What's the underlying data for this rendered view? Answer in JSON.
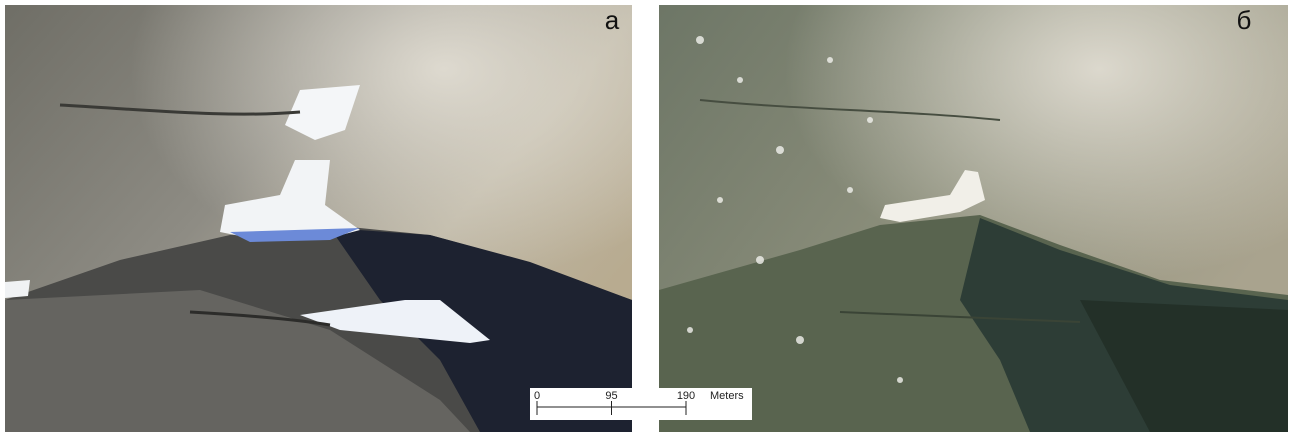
{
  "panels": [
    {
      "label": "а"
    },
    {
      "label": "б"
    }
  ],
  "scale_bar": {
    "ticks": [
      0,
      95,
      190
    ],
    "unit": "Meters"
  }
}
